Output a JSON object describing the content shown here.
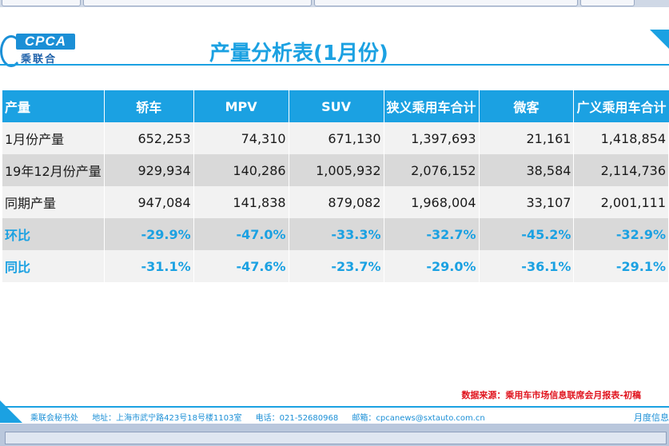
{
  "header": {
    "title": "产量分析表(1月份)",
    "logo_text": "CPCA",
    "logo_sub": "乘联合"
  },
  "table": {
    "columns": [
      "产量",
      "轿车",
      "MPV",
      "SUV",
      "狭义乘用车合计",
      "微客",
      "广义乘用车合计"
    ],
    "rows": [
      {
        "label": "1月份产量",
        "values": [
          "652,253",
          "74,310",
          "671,130",
          "1,397,693",
          "21,161",
          "1,418,854"
        ]
      },
      {
        "label": "19年12月份产量",
        "values": [
          "929,934",
          "140,286",
          "1,005,932",
          "2,076,152",
          "38,584",
          "2,114,736"
        ]
      },
      {
        "label": "同期产量",
        "values": [
          "947,084",
          "141,838",
          "879,082",
          "1,968,004",
          "33,107",
          "2,001,111"
        ]
      },
      {
        "label": "环比",
        "values": [
          "-29.9%",
          "-47.0%",
          "-33.3%",
          "-32.7%",
          "-45.2%",
          "-32.9%"
        ]
      },
      {
        "label": "同比",
        "values": [
          "-31.1%",
          "-47.6%",
          "-23.7%",
          "-29.0%",
          "-36.1%",
          "-29.1%"
        ]
      }
    ]
  },
  "source_note": "数据来源：乘用车市场信息联席会月报表-初稿",
  "footer": {
    "org": "乘联会秘书处",
    "address": "地址：上海市武宁路423号18号楼1103室",
    "phone": "电话：021-52680968",
    "email": "邮箱：cpcanews@sxtauto.com.cn",
    "right": "月度信息"
  },
  "colors": {
    "accent": "#1ba1e2",
    "source_red": "#e0141e"
  }
}
